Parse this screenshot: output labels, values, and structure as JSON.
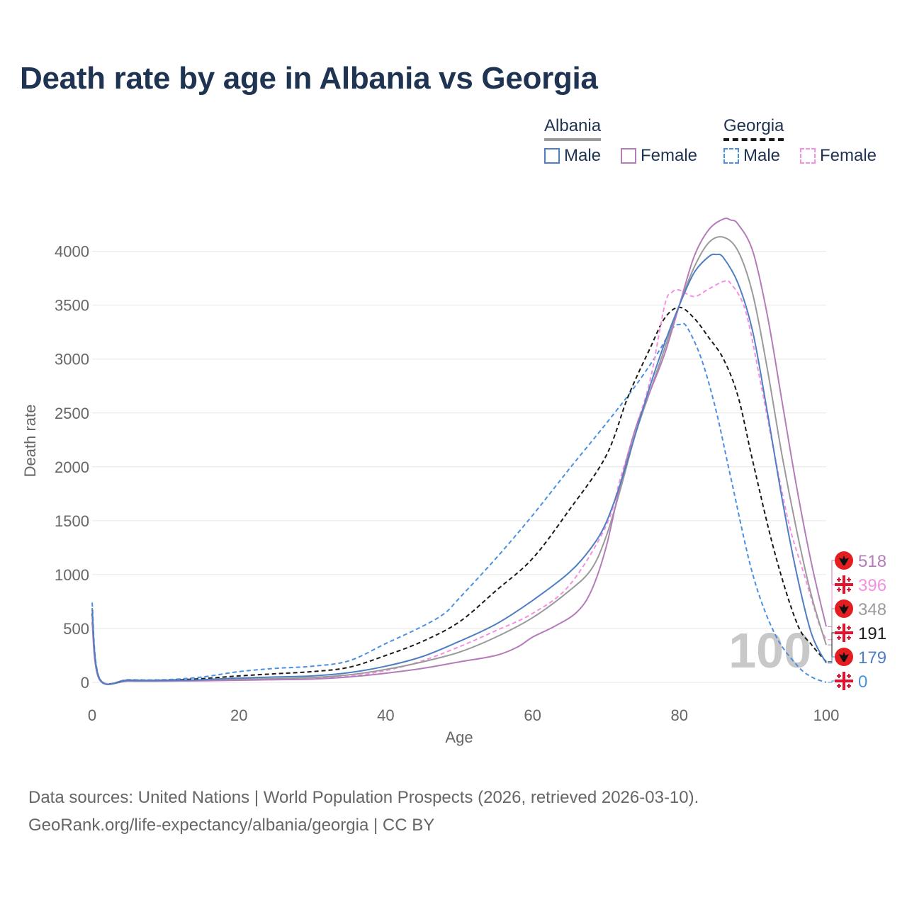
{
  "title": "Death rate by age in Albania vs Georgia",
  "legend": {
    "albania": {
      "label": "Albania",
      "male": "Male",
      "female": "Female"
    },
    "georgia": {
      "label": "Georgia",
      "male": "Male",
      "female": "Female"
    }
  },
  "colors": {
    "albania_male": "#4f7fc2",
    "albania_female": "#b47cb8",
    "albania_total": "#9a9a9a",
    "georgia_male": "#4a90e2",
    "georgia_female": "#f58fe0",
    "georgia_total": "#1a1a1a",
    "grid": "#e6e6e6",
    "axis_text": "#666666",
    "title": "#1f3352"
  },
  "year_watermark": "100",
  "source": {
    "line1": "Data sources: United Nations | World Population Prospects (2026, retrieved 2026-03-10).",
    "line2": "GeoRank.org/life-expectancy/albania/georgia | CC BY"
  },
  "chart_data": {
    "type": "line",
    "xlabel": "Age",
    "ylabel": "Death rate",
    "xlim": [
      0,
      100
    ],
    "ylim": [
      0,
      4300
    ],
    "x_ticks": [
      0,
      20,
      40,
      60,
      80,
      100
    ],
    "y_ticks": [
      0,
      500,
      1000,
      1500,
      2000,
      2500,
      3000,
      3500,
      4000
    ],
    "series": [
      {
        "key": "georgia_male",
        "name": "Georgia Male",
        "dash": true,
        "end_value": 0,
        "points": [
          [
            0,
            740
          ],
          [
            1,
            40
          ],
          [
            5,
            25
          ],
          [
            10,
            25
          ],
          [
            15,
            50
          ],
          [
            20,
            100
          ],
          [
            25,
            130
          ],
          [
            30,
            150
          ],
          [
            35,
            200
          ],
          [
            40,
            360
          ],
          [
            45,
            520
          ],
          [
            48,
            640
          ],
          [
            50,
            780
          ],
          [
            55,
            1150
          ],
          [
            60,
            1550
          ],
          [
            65,
            1980
          ],
          [
            70,
            2400
          ],
          [
            74,
            2750
          ],
          [
            77,
            3050
          ],
          [
            79,
            3280
          ],
          [
            80,
            3320
          ],
          [
            81,
            3300
          ],
          [
            83,
            3000
          ],
          [
            85,
            2520
          ],
          [
            87,
            1900
          ],
          [
            90,
            1000
          ],
          [
            93,
            450
          ],
          [
            96,
            160
          ],
          [
            98,
            50
          ],
          [
            100,
            0
          ]
        ]
      },
      {
        "key": "georgia_total",
        "name": "Georgia",
        "dash": true,
        "end_value": 191,
        "points": [
          [
            0,
            640
          ],
          [
            1,
            35
          ],
          [
            5,
            20
          ],
          [
            10,
            20
          ],
          [
            15,
            35
          ],
          [
            20,
            60
          ],
          [
            25,
            80
          ],
          [
            30,
            100
          ],
          [
            35,
            140
          ],
          [
            40,
            250
          ],
          [
            45,
            380
          ],
          [
            50,
            560
          ],
          [
            55,
            850
          ],
          [
            60,
            1150
          ],
          [
            65,
            1600
          ],
          [
            70,
            2100
          ],
          [
            73,
            2650
          ],
          [
            76,
            3100
          ],
          [
            78,
            3380
          ],
          [
            80,
            3480
          ],
          [
            82,
            3380
          ],
          [
            84,
            3200
          ],
          [
            86,
            3000
          ],
          [
            88,
            2650
          ],
          [
            90,
            2050
          ],
          [
            93,
            1200
          ],
          [
            96,
            550
          ],
          [
            98,
            350
          ],
          [
            100,
            191
          ]
        ]
      },
      {
        "key": "georgia_female",
        "name": "Georgia Female",
        "dash": true,
        "end_value": 396,
        "points": [
          [
            0,
            560
          ],
          [
            1,
            30
          ],
          [
            5,
            15
          ],
          [
            10,
            15
          ],
          [
            15,
            20
          ],
          [
            20,
            25
          ],
          [
            25,
            30
          ],
          [
            30,
            40
          ],
          [
            35,
            55
          ],
          [
            40,
            110
          ],
          [
            45,
            200
          ],
          [
            50,
            330
          ],
          [
            55,
            480
          ],
          [
            60,
            640
          ],
          [
            65,
            900
          ],
          [
            70,
            1450
          ],
          [
            72,
            1900
          ],
          [
            74,
            2350
          ],
          [
            76,
            2800
          ],
          [
            78,
            3500
          ],
          [
            79,
            3620
          ],
          [
            80,
            3640
          ],
          [
            82,
            3580
          ],
          [
            84,
            3650
          ],
          [
            86,
            3720
          ],
          [
            87,
            3700
          ],
          [
            89,
            3450
          ],
          [
            91,
            2800
          ],
          [
            93,
            2100
          ],
          [
            95,
            1450
          ],
          [
            97,
            1000
          ],
          [
            99,
            550
          ],
          [
            100,
            396
          ]
        ]
      },
      {
        "key": "albania_total",
        "name": "Albania",
        "dash": false,
        "end_value": 348,
        "points": [
          [
            0,
            620
          ],
          [
            1,
            30
          ],
          [
            5,
            15
          ],
          [
            10,
            15
          ],
          [
            15,
            20
          ],
          [
            20,
            30
          ],
          [
            25,
            35
          ],
          [
            30,
            45
          ],
          [
            35,
            70
          ],
          [
            40,
            120
          ],
          [
            45,
            190
          ],
          [
            50,
            280
          ],
          [
            55,
            420
          ],
          [
            60,
            600
          ],
          [
            65,
            850
          ],
          [
            68,
            1050
          ],
          [
            70,
            1350
          ],
          [
            72,
            1800
          ],
          [
            74,
            2300
          ],
          [
            76,
            2700
          ],
          [
            78,
            3100
          ],
          [
            80,
            3500
          ],
          [
            82,
            3850
          ],
          [
            84,
            4080
          ],
          [
            86,
            4130
          ],
          [
            88,
            4000
          ],
          [
            90,
            3600
          ],
          [
            92,
            2900
          ],
          [
            94,
            2100
          ],
          [
            96,
            1400
          ],
          [
            98,
            800
          ],
          [
            100,
            348
          ]
        ]
      },
      {
        "key": "albania_female",
        "name": "Albania Female",
        "dash": false,
        "end_value": 518,
        "points": [
          [
            0,
            560
          ],
          [
            1,
            25
          ],
          [
            5,
            12
          ],
          [
            10,
            12
          ],
          [
            15,
            15
          ],
          [
            20,
            20
          ],
          [
            25,
            25
          ],
          [
            30,
            30
          ],
          [
            35,
            50
          ],
          [
            40,
            85
          ],
          [
            45,
            130
          ],
          [
            50,
            190
          ],
          [
            55,
            250
          ],
          [
            58,
            330
          ],
          [
            60,
            420
          ],
          [
            63,
            520
          ],
          [
            66,
            650
          ],
          [
            68,
            850
          ],
          [
            70,
            1250
          ],
          [
            72,
            1850
          ],
          [
            74,
            2350
          ],
          [
            76,
            2700
          ],
          [
            78,
            3050
          ],
          [
            80,
            3500
          ],
          [
            82,
            3950
          ],
          [
            84,
            4200
          ],
          [
            86,
            4300
          ],
          [
            87,
            4290
          ],
          [
            88,
            4250
          ],
          [
            90,
            4000
          ],
          [
            92,
            3400
          ],
          [
            94,
            2600
          ],
          [
            96,
            1800
          ],
          [
            98,
            1100
          ],
          [
            100,
            518
          ]
        ]
      },
      {
        "key": "albania_male",
        "name": "Albania Male",
        "dash": false,
        "end_value": 179,
        "points": [
          [
            0,
            690
          ],
          [
            1,
            35
          ],
          [
            5,
            18
          ],
          [
            10,
            18
          ],
          [
            15,
            25
          ],
          [
            20,
            40
          ],
          [
            25,
            50
          ],
          [
            30,
            60
          ],
          [
            35,
            90
          ],
          [
            40,
            150
          ],
          [
            45,
            240
          ],
          [
            50,
            380
          ],
          [
            55,
            540
          ],
          [
            60,
            760
          ],
          [
            65,
            1020
          ],
          [
            68,
            1250
          ],
          [
            70,
            1480
          ],
          [
            72,
            1850
          ],
          [
            74,
            2300
          ],
          [
            76,
            2750
          ],
          [
            78,
            3150
          ],
          [
            80,
            3500
          ],
          [
            82,
            3800
          ],
          [
            84,
            3950
          ],
          [
            85,
            3970
          ],
          [
            86,
            3940
          ],
          [
            88,
            3700
          ],
          [
            90,
            3250
          ],
          [
            92,
            2500
          ],
          [
            94,
            1700
          ],
          [
            96,
            1000
          ],
          [
            98,
            450
          ],
          [
            100,
            179
          ]
        ]
      }
    ]
  }
}
